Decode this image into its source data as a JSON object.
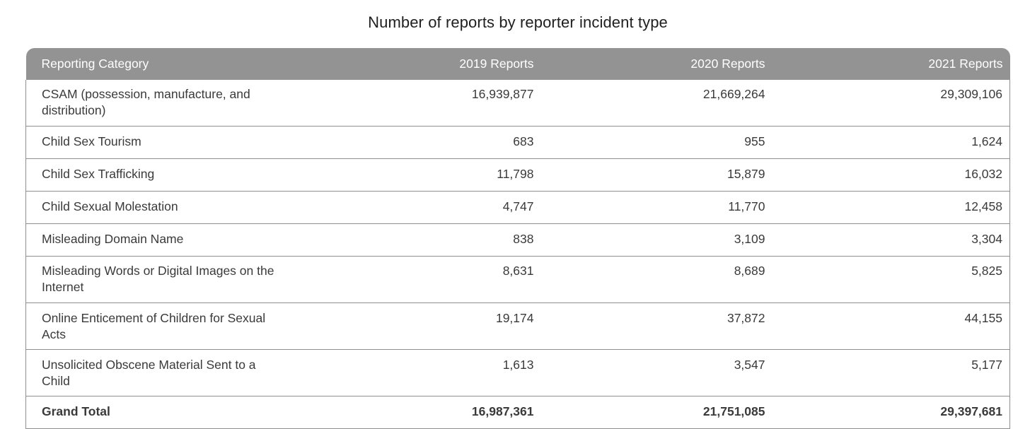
{
  "title": "Number of reports by reporter incident type",
  "table": {
    "headers": [
      "Reporting Category",
      "2019 Reports",
      "2020 Reports",
      "2021 Reports"
    ],
    "rows": [
      [
        "CSAM (possession, manufacture, and distribution)",
        "16,939,877",
        "21,669,264",
        "29,309,106"
      ],
      [
        "Child Sex Tourism",
        "683",
        "955",
        "1,624"
      ],
      [
        "Child Sex Trafficking",
        "11,798",
        "15,879",
        "16,032"
      ],
      [
        "Child Sexual Molestation",
        "4,747",
        "11,770",
        "12,458"
      ],
      [
        "Misleading Domain Name",
        "838",
        "3,109",
        "3,304"
      ],
      [
        "Misleading Words or Digital Images on the Internet",
        "8,631",
        "8,689",
        "5,825"
      ],
      [
        "Online Enticement of Children for Sexual Acts",
        "19,174",
        "37,872",
        "44,155"
      ],
      [
        "Unsolicited Obscene Material Sent to a Child",
        "1,613",
        "3,547",
        "5,177"
      ]
    ],
    "total": [
      "Grand Total",
      "16,987,361",
      "21,751,085",
      "29,397,681"
    ]
  },
  "colors": {
    "header_bg": "#939393",
    "header_text": "#ffffff",
    "border": "#8f8f8f",
    "text": "#3a3a3a",
    "title_text": "#1f1f1f"
  }
}
